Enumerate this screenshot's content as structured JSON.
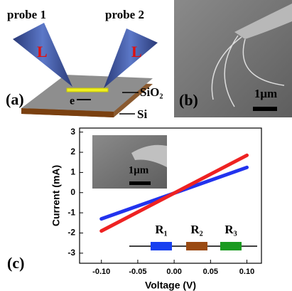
{
  "panel_a": {
    "probe_left": "probe 1",
    "probe_right": "probe 2",
    "tip_left": "L",
    "tip_right": "L",
    "label": "(a)",
    "electron": "e",
    "oxide": "SiO₂",
    "substrate": "Si"
  },
  "panel_b": {
    "label": "(b)",
    "scale": "1μm"
  },
  "panel_c": {
    "label": "(c)",
    "inset_scale": "1μm",
    "resistors": [
      "R₁",
      "R₂",
      "R₃"
    ]
  },
  "chart_data": {
    "type": "line",
    "x_label": "Voltage (V)",
    "y_label": "Current (mA)",
    "x": [
      -0.1,
      0.1
    ],
    "series": [
      {
        "color": "#2233ee",
        "values": [
          -1.3,
          1.25
        ]
      },
      {
        "color": "#ee2222",
        "values": [
          -1.9,
          1.85
        ]
      }
    ],
    "xlim": [
      -0.13,
      0.12
    ],
    "ylim": [
      -3.5,
      3.2
    ],
    "xticks": [
      {
        "value": -0.1,
        "label": "-0.10"
      },
      {
        "value": -0.05,
        "label": "-0.05"
      },
      {
        "value": 0,
        "label": "0.00"
      },
      {
        "value": 0.05,
        "label": "0.05"
      },
      {
        "value": 0.1,
        "label": "0.10"
      }
    ],
    "yticks": [
      -3,
      -2,
      -1,
      0,
      1,
      2,
      3
    ]
  }
}
